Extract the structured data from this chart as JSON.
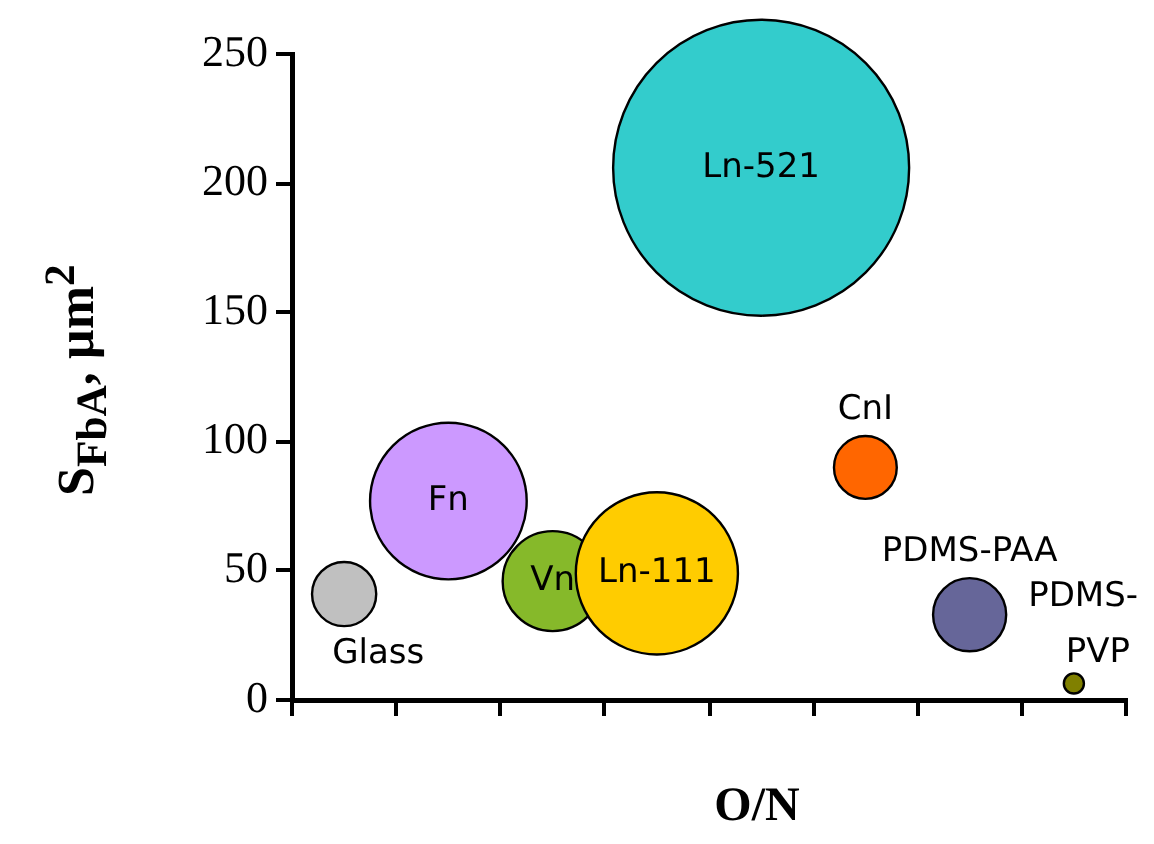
{
  "chart_data": {
    "type": "bubble",
    "xlabel": "O/N",
    "ylabel": "S$_{FbA}$, µm$^{2}$",
    "categories": [
      null,
      null,
      null,
      null,
      null,
      null,
      null,
      null
    ],
    "ylim": [
      0,
      250
    ],
    "yticks": [
      0,
      50,
      100,
      150,
      200,
      250
    ],
    "grid": false,
    "legend": false,
    "series": [
      {
        "name": "Glass",
        "color": "#c0c0c0",
        "values": [
          41,
          null,
          null,
          null,
          null,
          null,
          null,
          null
        ],
        "sizes": [
          0.047,
          null,
          null,
          null,
          null,
          null,
          null,
          null
        ]
      },
      {
        "name": "Fn",
        "color": "#cc99ff",
        "values": [
          null,
          77,
          null,
          null,
          null,
          null,
          null,
          null
        ],
        "sizes": [
          null,
          0.28,
          null,
          null,
          null,
          null,
          null,
          null
        ]
      },
      {
        "name": "Vn",
        "color": "#86b92a",
        "values": [
          null,
          null,
          46,
          null,
          null,
          null,
          null,
          null
        ],
        "sizes": [
          null,
          null,
          0.114,
          null,
          null,
          null,
          null,
          null
        ]
      },
      {
        "name": "Ln-111",
        "color": "#ffcc00",
        "values": [
          null,
          null,
          null,
          49,
          null,
          null,
          null,
          null
        ],
        "sizes": [
          null,
          null,
          null,
          0.3,
          null,
          null,
          null,
          null
        ]
      },
      {
        "name": "Ln-521",
        "color": "#33cccc",
        "values": [
          null,
          null,
          null,
          null,
          206,
          null,
          null,
          null
        ],
        "sizes": [
          null,
          null,
          null,
          null,
          1,
          null,
          null,
          null
        ]
      },
      {
        "name": "CnI",
        "color": "#ff6600",
        "values": [
          null,
          null,
          null,
          null,
          null,
          90,
          null,
          null
        ],
        "sizes": [
          null,
          null,
          null,
          null,
          null,
          0.045,
          null,
          null
        ]
      },
      {
        "name": "PDMS-PAA",
        "color": "#666699",
        "values": [
          null,
          null,
          null,
          null,
          null,
          null,
          33,
          null
        ],
        "sizes": [
          null,
          null,
          null,
          null,
          null,
          null,
          0.061,
          null
        ]
      },
      {
        "name": "PDMS-PVP",
        "color": "#808000",
        "values": [
          null,
          null,
          null,
          null,
          null,
          null,
          null,
          6.4
        ],
        "sizes": [
          null,
          null,
          null,
          null,
          null,
          null,
          null,
          0.0046
        ]
      }
    ]
  }
}
